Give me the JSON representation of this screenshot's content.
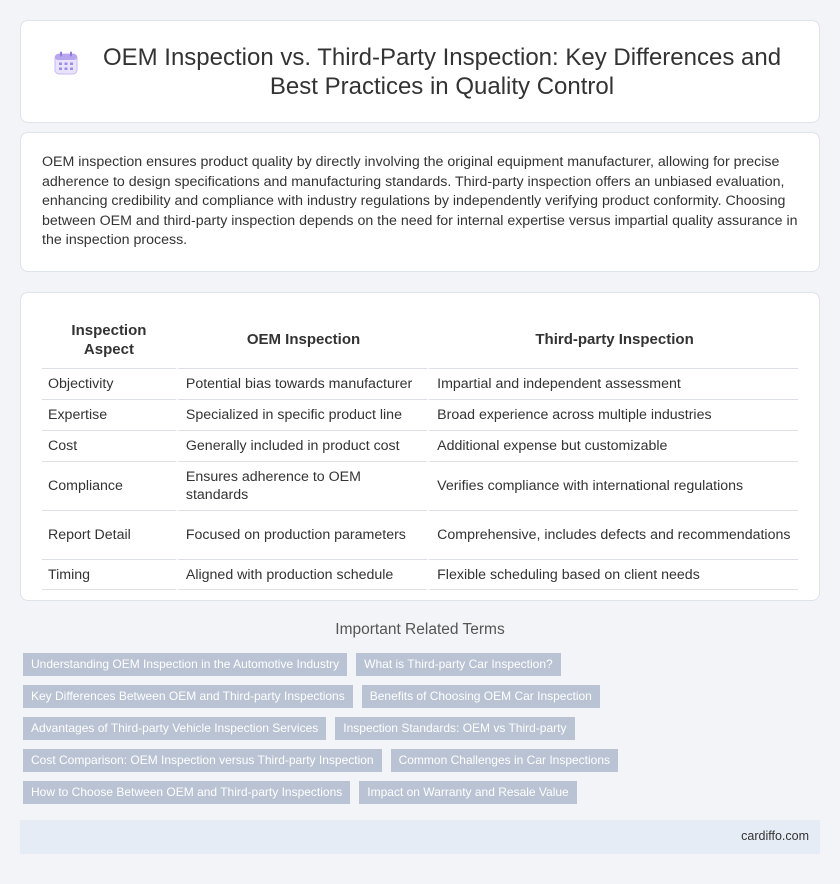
{
  "header": {
    "icon": "calendar-icon",
    "title": "OEM Inspection vs. Third-Party Inspection: Key Differences and Best Practices in Quality Control"
  },
  "intro": {
    "text": "OEM inspection ensures product quality by directly involving the original equipment manufacturer, allowing for precise adherence to design specifications and manufacturing standards. Third-party inspection offers an unbiased evaluation, enhancing credibility and compliance with industry regulations by independently verifying product conformity. Choosing between OEM and third-party inspection depends on the need for internal expertise versus impartial quality assurance in the inspection process."
  },
  "table": {
    "headers": [
      "Inspection Aspect",
      "OEM Inspection",
      "Third-party Inspection"
    ],
    "rows": [
      [
        "Objectivity",
        "Potential bias towards manufacturer",
        "Impartial and independent assessment"
      ],
      [
        "Expertise",
        "Specialized in specific product line",
        "Broad experience across multiple industries"
      ],
      [
        "Cost",
        "Generally included in product cost",
        "Additional expense but customizable"
      ],
      [
        "Compliance",
        "Ensures adherence to OEM standards",
        "Verifies compliance with international regulations"
      ],
      [
        "Report Detail",
        "Focused on production parameters",
        "Comprehensive, includes defects and recommendations"
      ],
      [
        "Timing",
        "Aligned with production schedule",
        "Flexible scheduling based on client needs"
      ]
    ]
  },
  "related": {
    "heading": "Important Related Terms",
    "tags": [
      "Understanding OEM Inspection in the Automotive Industry",
      "What is Third-party Car Inspection?",
      "Key Differences Between OEM and Third-party Inspections",
      "Benefits of Choosing OEM Car Inspection",
      "Advantages of Third-party Vehicle Inspection Services",
      "Inspection Standards: OEM vs Third-party",
      "Cost Comparison: OEM Inspection versus Third-party Inspection",
      "Common Challenges in Car Inspections",
      "How to Choose Between OEM and Third-party Inspections",
      "Impact on Warranty and Resale Value"
    ]
  },
  "footer": {
    "site": "cardiffo.com"
  },
  "colors": {
    "tag_bg": "#b9c3d3",
    "footer_bg": "#e6ecf6",
    "page_bg": "#f2f4f8"
  }
}
